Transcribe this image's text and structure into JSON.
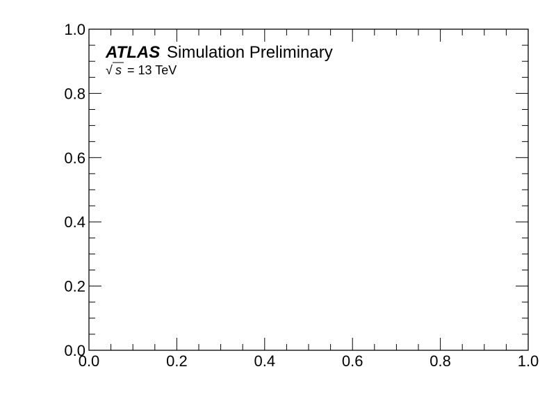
{
  "chart_data": {
    "type": "line",
    "title": "",
    "xlabel": "",
    "ylabel": "",
    "xlim": [
      0.0,
      1.0
    ],
    "ylim": [
      0.0,
      1.0
    ],
    "x_ticks": [
      "0.0",
      "0.2",
      "0.4",
      "0.6",
      "0.8",
      "1.0"
    ],
    "y_ticks": [
      "0.0",
      "0.2",
      "0.4",
      "0.6",
      "0.8",
      "1.0"
    ],
    "series": [],
    "grid": false,
    "annotations": {
      "experiment": "ATLAS",
      "status": "Simulation Preliminary",
      "energy_sqrt": "√",
      "energy_var": "s",
      "energy_value": "= 13 TeV"
    }
  }
}
